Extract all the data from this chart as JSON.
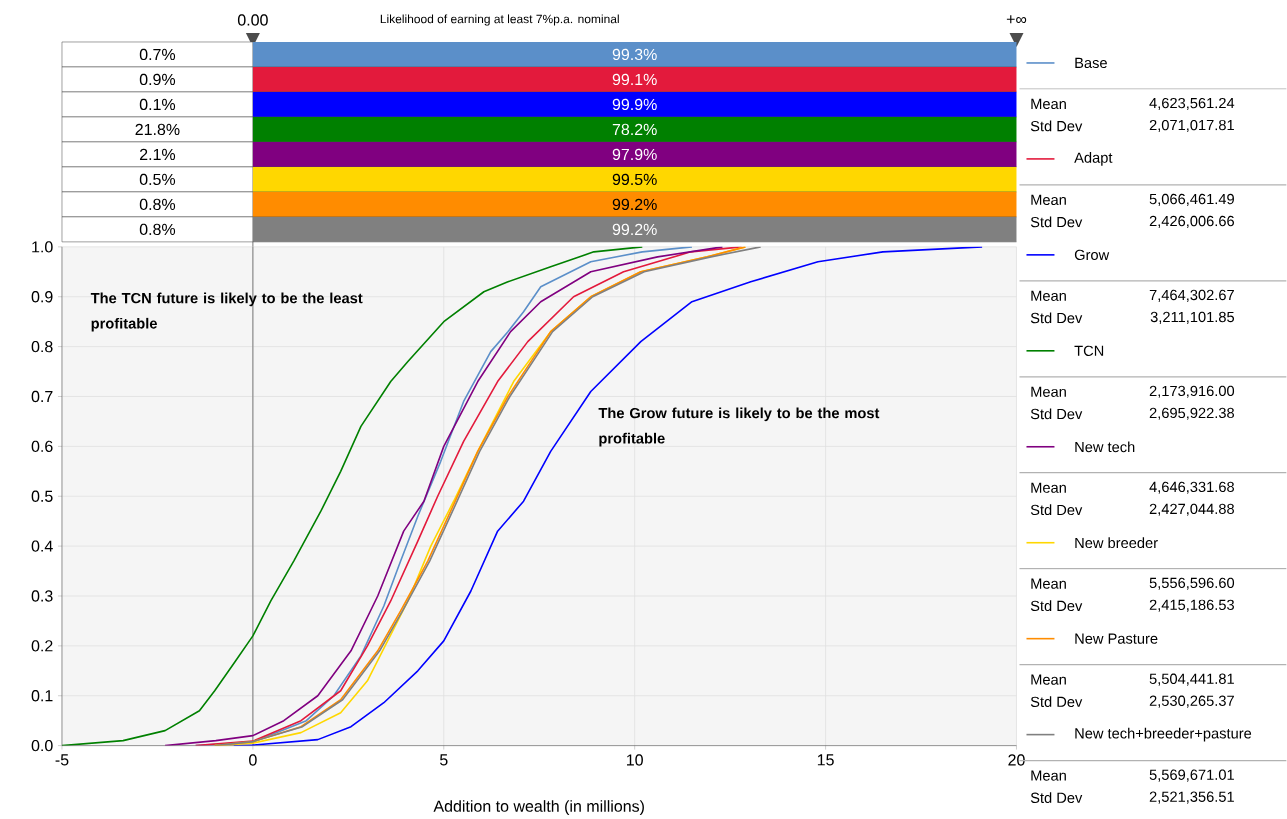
{
  "chart_data": {
    "type": "line",
    "title": "Likelihood of earning at least 7%p.a. nominal",
    "xlabel": "Addition to wealth (in millions)",
    "xlim": [
      -5,
      20
    ],
    "ylim": [
      0,
      1
    ],
    "xticks": [
      -5,
      0,
      5,
      10,
      15,
      20
    ],
    "yticks": [
      {
        "value": 0,
        "label": "0.0"
      },
      {
        "value": 0.1,
        "label": "0.1"
      },
      {
        "value": 0.2,
        "label": "0.2"
      },
      {
        "value": 0.3,
        "label": "0.3"
      },
      {
        "value": 0.4,
        "label": "0.4"
      },
      {
        "value": 0.5,
        "label": "0.5"
      },
      {
        "value": 0.6,
        "label": "0.6"
      },
      {
        "value": 0.7,
        "label": "0.7"
      },
      {
        "value": 0.8,
        "label": "0.8"
      },
      {
        "value": 0.9,
        "label": "0.9"
      },
      {
        "value": 1,
        "label": "1.0"
      }
    ],
    "grid": true,
    "legend": "right",
    "marker": "none",
    "line_style": "solid",
    "ref_lines": [
      {
        "axis": "x",
        "value": 0,
        "label": "0.00",
        "color": "#808080"
      }
    ],
    "series": [
      {
        "name": "Base",
        "color": "#5b8fc9",
        "x": [
          -1.5,
          0,
          1.4,
          2.12,
          2.83,
          3.43,
          3.87,
          4.32,
          4.92,
          5.52,
          6.23,
          6.68,
          7.09,
          7.54,
          8.85,
          10.2,
          11.5
        ],
        "values": [
          0,
          0.007,
          0.05,
          0.1,
          0.18,
          0.28,
          0.37,
          0.46,
          0.57,
          0.69,
          0.79,
          0.83,
          0.87,
          0.92,
          0.97,
          0.99,
          1.0
        ]
      },
      {
        "name": "Adapt",
        "color": "#e31a3c",
        "x": [
          -1.5,
          0,
          1.26,
          2.3,
          3.0,
          3.61,
          4.32,
          4.84,
          5.52,
          6.41,
          7.2,
          8.4,
          9.71,
          11.47,
          12.8
        ],
        "values": [
          0,
          0.009,
          0.05,
          0.11,
          0.2,
          0.29,
          0.41,
          0.5,
          0.61,
          0.73,
          0.81,
          0.9,
          0.95,
          0.99,
          1.0
        ]
      },
      {
        "name": "Grow",
        "color": "#0000ff",
        "x": [
          -0.5,
          0,
          1.7,
          2.57,
          3.43,
          4.32,
          5.0,
          5.71,
          6.41,
          7.09,
          7.8,
          8.85,
          10.16,
          11.5,
          13.04,
          14.8,
          16.5,
          19.1
        ],
        "values": [
          0,
          0.001,
          0.012,
          0.038,
          0.086,
          0.15,
          0.21,
          0.31,
          0.43,
          0.49,
          0.59,
          0.71,
          0.81,
          0.89,
          0.93,
          0.97,
          0.99,
          1.0
        ]
      },
      {
        "name": "TCN",
        "color": "#008000",
        "x": [
          -5,
          -3.4,
          -2.3,
          -1.4,
          -1.0,
          -0.45,
          0,
          0.47,
          1.07,
          1.78,
          2.3,
          2.83,
          3.61,
          4.06,
          5.0,
          6.05,
          6.68,
          7.8,
          8.93,
          10.2
        ],
        "values": [
          0,
          0.01,
          0.03,
          0.07,
          0.11,
          0.17,
          0.22,
          0.29,
          0.37,
          0.47,
          0.55,
          0.64,
          0.73,
          0.77,
          0.85,
          0.91,
          0.93,
          0.96,
          0.99,
          1.0
        ]
      },
      {
        "name": "New tech",
        "color": "#800080",
        "x": [
          -2.3,
          -0.97,
          0,
          0.81,
          1.7,
          2.57,
          3.27,
          3.95,
          4.48,
          5.0,
          5.89,
          6.75,
          7.54,
          8.85,
          10.6,
          12.3
        ],
        "values": [
          0,
          0.01,
          0.02,
          0.05,
          0.1,
          0.19,
          0.3,
          0.43,
          0.49,
          0.6,
          0.73,
          0.83,
          0.89,
          0.95,
          0.98,
          1.0
        ]
      },
      {
        "name": "New breeder",
        "color": "#ffd700",
        "x": [
          -1,
          0,
          1.26,
          2.3,
          3.0,
          3.53,
          4.06,
          4.66,
          5.26,
          5.89,
          6.83,
          7.8,
          8.85,
          10.16,
          11.9,
          12.9
        ],
        "values": [
          0,
          0.005,
          0.026,
          0.066,
          0.13,
          0.21,
          0.29,
          0.4,
          0.49,
          0.59,
          0.73,
          0.83,
          0.9,
          0.95,
          0.98,
          1.0
        ]
      },
      {
        "name": "New Pasture",
        "color": "#ff8c00",
        "x": [
          -1,
          0,
          1.26,
          2.3,
          3.27,
          3.87,
          4.58,
          5.18,
          5.89,
          6.68,
          7.8,
          8.85,
          10.16,
          11.9,
          12.9
        ],
        "values": [
          0,
          0.008,
          0.038,
          0.092,
          0.19,
          0.27,
          0.37,
          0.47,
          0.59,
          0.7,
          0.83,
          0.9,
          0.95,
          0.98,
          1.0
        ]
      },
      {
        "name": "New tech+breeder+pasture",
        "color": "#808080",
        "x": [
          -1,
          0,
          1.3,
          2.35,
          3.32,
          3.92,
          4.63,
          5.23,
          5.94,
          6.73,
          7.85,
          8.9,
          10.25,
          12.0,
          13.3
        ],
        "values": [
          0,
          0.008,
          0.038,
          0.092,
          0.19,
          0.27,
          0.37,
          0.47,
          0.59,
          0.7,
          0.83,
          0.9,
          0.95,
          0.98,
          1.0
        ]
      }
    ],
    "annotations": [
      "+∞",
      "0.7%",
      "99.3%",
      "0.9%",
      "99.1%",
      "0.1%",
      "99.9%",
      "21.8%",
      "78.2%",
      "2.1%",
      "97.9%",
      "0.5%",
      "99.5%",
      "0.8%",
      "99.2%",
      "0.8%",
      "99.2%",
      "Mean",
      "4,623,561.24",
      "Std Dev",
      "2,071,017.81",
      "Mean",
      "5,066,461.49",
      "Std Dev",
      "2,426,006.66",
      "Mean",
      "7,464,302.67",
      "Std Dev",
      "3,211,101.85",
      "Mean",
      "2,173,916.00",
      "Std Dev",
      "2,695,922.38",
      "Mean",
      "4,646,331.68",
      "Std Dev",
      "2,427,044.88",
      "Mean",
      "5,556,596.60",
      "Std Dev",
      "2,415,186.53",
      "Mean",
      "5,504,441.81",
      "Std Dev",
      "2,530,265.37",
      "Mean",
      "5,569,671.01",
      "Std Dev",
      "2,521,356.51",
      "The TCN future is likely to be the least profitable",
      "The Grow future is likely to be the most profitable"
    ]
  }
}
